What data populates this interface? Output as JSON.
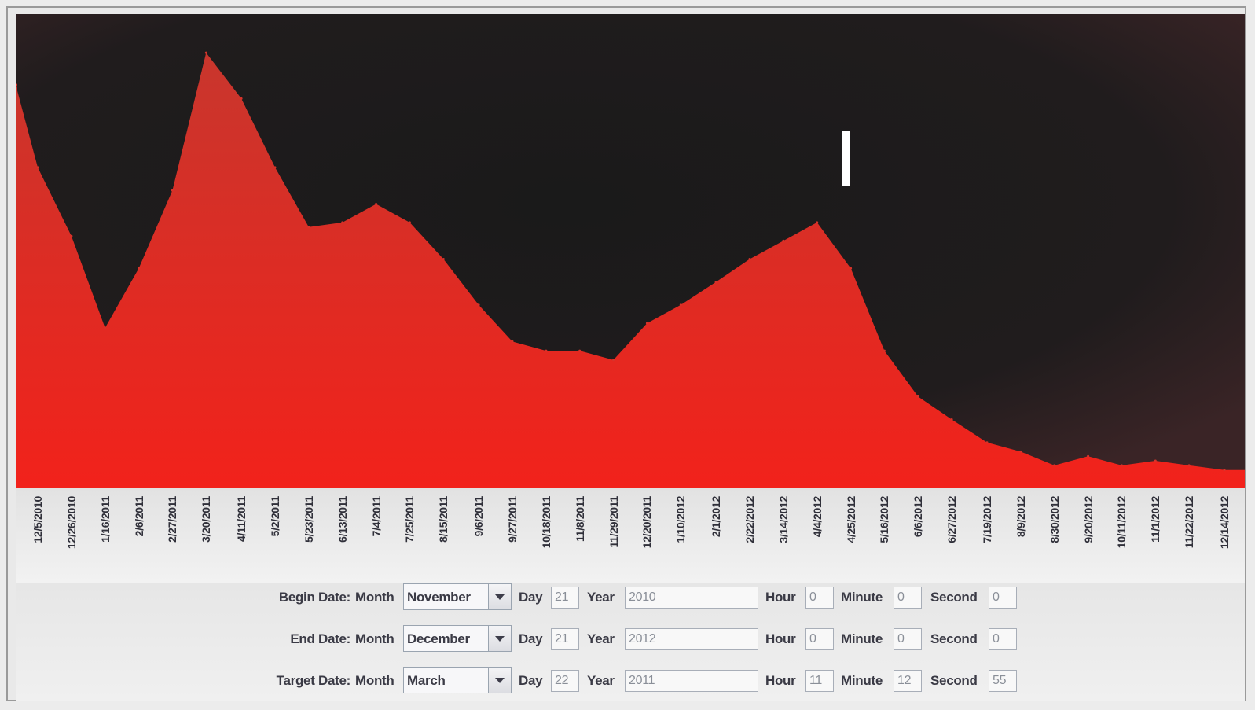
{
  "chart": {
    "x_tick_labels": [
      "12/5/2010",
      "12/26/2010",
      "1/16/2011",
      "2/6/2011",
      "2/27/2011",
      "3/20/2011",
      "4/11/2011",
      "5/2/2011",
      "5/23/2011",
      "6/13/2011",
      "7/4/2011",
      "7/25/2011",
      "8/15/2011",
      "9/6/2011",
      "9/27/2011",
      "10/18/2011",
      "11/8/2011",
      "11/29/2011",
      "12/20/2011",
      "1/10/2012",
      "2/1/2012",
      "2/22/2012",
      "3/14/2012",
      "4/4/2012",
      "4/25/2012",
      "5/16/2012",
      "6/6/2012",
      "6/27/2012",
      "7/19/2012",
      "8/9/2012",
      "8/30/2012",
      "9/20/2012",
      "10/11/2012",
      "11/1/2012",
      "11/22/2012",
      "12/14/2012"
    ],
    "colors": {
      "area": "#e52b22",
      "background": "#1c1b1c"
    }
  },
  "chart_data": {
    "type": "area",
    "x": [
      "11/21/2010",
      "12/5/2010",
      "12/26/2010",
      "1/16/2011",
      "2/6/2011",
      "2/27/2011",
      "3/20/2011",
      "4/11/2011",
      "5/2/2011",
      "5/23/2011",
      "6/13/2011",
      "7/4/2011",
      "7/25/2011",
      "8/15/2011",
      "9/6/2011",
      "9/27/2011",
      "10/18/2011",
      "11/8/2011",
      "11/29/2011",
      "12/20/2011",
      "1/10/2012",
      "2/1/2012",
      "2/22/2012",
      "3/14/2012",
      "4/4/2012",
      "4/25/2012",
      "5/16/2012",
      "6/6/2012",
      "6/27/2012",
      "7/19/2012",
      "8/9/2012",
      "8/30/2012",
      "9/20/2012",
      "10/11/2012",
      "11/1/2012",
      "11/22/2012",
      "12/14/2012"
    ],
    "series": [
      {
        "values": [
          88,
          70,
          55,
          35,
          48,
          65,
          95,
          85,
          70,
          57,
          58,
          62,
          58,
          50,
          40,
          32,
          30,
          30,
          28,
          36,
          40,
          45,
          50,
          54,
          58,
          48,
          30,
          20,
          15,
          10,
          8,
          5,
          7,
          5,
          6,
          5,
          4
        ]
      }
    ],
    "ylim": [
      0,
      100
    ]
  },
  "controls": {
    "begin": {
      "label": "Begin Date:",
      "month": "November",
      "day": "21",
      "year": "2010",
      "hour": "0",
      "minute": "0",
      "second": "0"
    },
    "end": {
      "label": "End Date:",
      "month": "December",
      "day": "21",
      "year": "2012",
      "hour": "0",
      "minute": "0",
      "second": "0"
    },
    "target": {
      "label": "Target Date:",
      "month": "March",
      "day": "22",
      "year": "2011",
      "hour": "11",
      "minute": "12",
      "second": "55"
    },
    "labels": {
      "month": "Month",
      "day": "Day",
      "year": "Year",
      "hour": "Hour",
      "minute": "Minute",
      "second": "Second"
    }
  }
}
